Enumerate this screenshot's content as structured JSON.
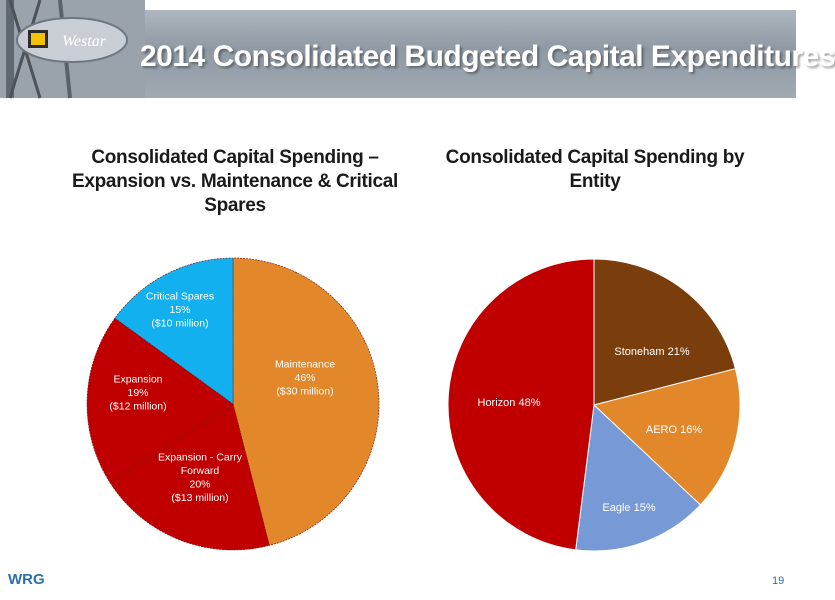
{
  "header": {
    "title": "2014 Consolidated Budgeted Capital Expenditures"
  },
  "chart_data": [
    {
      "type": "pie",
      "title_lines": [
        "Consolidated Capital Spending –",
        "Expansion vs. Maintenance & Critical",
        "Spares"
      ],
      "slices": [
        {
          "label_lines": [
            "Maintenance",
            "46%",
            "($30 million)"
          ],
          "value": 46,
          "color": "#e2872a"
        },
        {
          "label_lines": [
            "Expansion - Carry",
            "Forward",
            "20%",
            "($13 million)"
          ],
          "value": 20,
          "color": "#c00000"
        },
        {
          "label_lines": [
            "Expansion",
            "19%",
            "($12 million)"
          ],
          "value": 19,
          "color": "#c00000"
        },
        {
          "label_lines": [
            "Critical Spares",
            "15%",
            "($10 million)"
          ],
          "value": 15,
          "color": "#12b0ee"
        }
      ]
    },
    {
      "type": "pie",
      "title_lines": [
        "Consolidated Capital Spending by",
        "Entity"
      ],
      "slices": [
        {
          "label_lines": [
            "Stoneham 21%"
          ],
          "value": 21,
          "color": "#7a3e0d"
        },
        {
          "label_lines": [
            "AERO  16%"
          ],
          "value": 16,
          "color": "#e2872a"
        },
        {
          "label_lines": [
            "Eagle 15%"
          ],
          "value": 15,
          "color": "#7799d6"
        },
        {
          "label_lines": [
            "Horizon 48%"
          ],
          "value": 48,
          "color": "#c00000"
        }
      ]
    }
  ],
  "footer": {
    "brand": "WRG",
    "page_number": "19"
  }
}
